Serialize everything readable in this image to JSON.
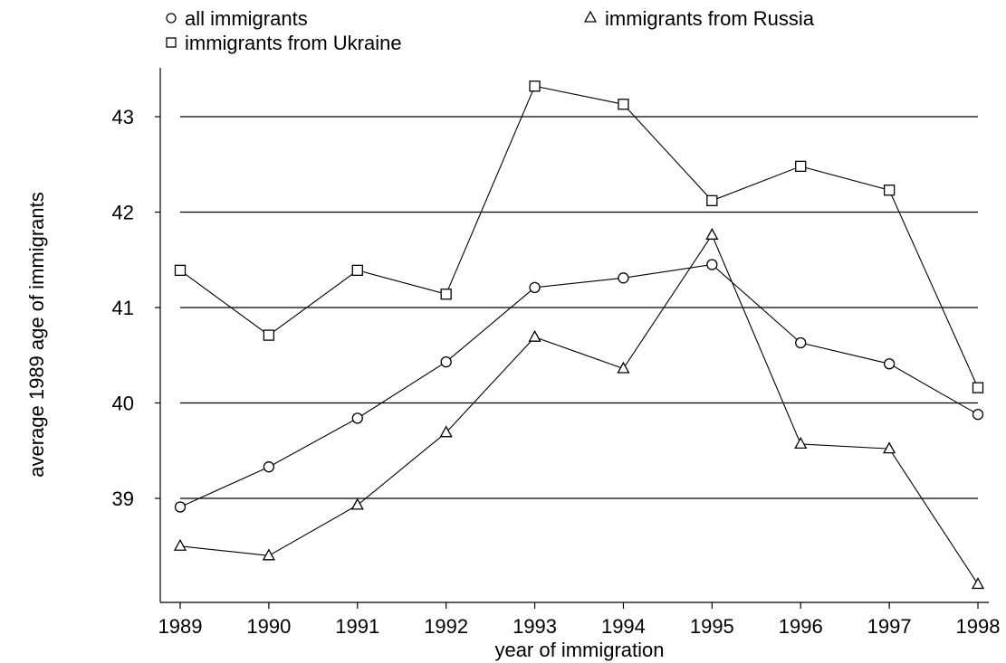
{
  "chart_data": {
    "type": "line",
    "xlabel": "year of immigration",
    "ylabel": "average 1989 age of immigrants",
    "x": [
      1989,
      1990,
      1991,
      1992,
      1993,
      1994,
      1995,
      1996,
      1997,
      1998
    ],
    "x_tick_labels": [
      "1989",
      "1990",
      "1991",
      "1992",
      "1993",
      "1994",
      "1995",
      "1996",
      "1997",
      "1998"
    ],
    "y_ticks": [
      39,
      40,
      41,
      42,
      43
    ],
    "y_tick_labels": [
      "39",
      "40",
      "41",
      "42",
      "43"
    ],
    "xlim": [
      1989,
      1998
    ],
    "ylim": [
      38,
      43.4
    ],
    "grid": "horizontal lines at y ticks",
    "legend_placement": "top",
    "series": [
      {
        "name": "all immigrants",
        "marker": "circle",
        "values": [
          38.91,
          39.33,
          39.84,
          40.43,
          41.21,
          41.31,
          41.45,
          40.63,
          40.41,
          39.88
        ]
      },
      {
        "name": "immigrants from Russia",
        "marker": "triangle",
        "values": [
          38.5,
          38.4,
          38.93,
          39.69,
          40.69,
          40.36,
          41.76,
          39.57,
          39.52,
          38.1
        ]
      },
      {
        "name": "immigrants from Ukraine",
        "marker": "square",
        "values": [
          41.39,
          40.71,
          41.39,
          41.14,
          43.32,
          43.13,
          42.12,
          42.48,
          42.23,
          40.16
        ]
      }
    ]
  }
}
